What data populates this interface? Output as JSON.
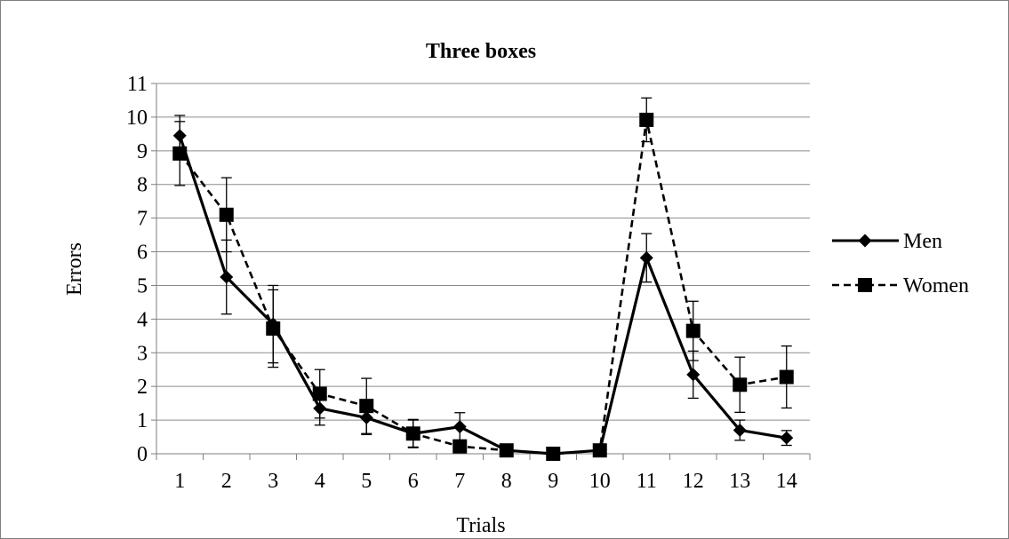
{
  "chart_data": {
    "type": "line",
    "title": "Three boxes",
    "xlabel": "Trials",
    "ylabel": "Errors",
    "x": [
      1,
      2,
      3,
      4,
      5,
      6,
      7,
      8,
      9,
      10,
      11,
      12,
      13,
      14
    ],
    "ylim": [
      0,
      11
    ],
    "yticks": [
      0,
      1,
      2,
      3,
      4,
      5,
      6,
      7,
      8,
      9,
      10,
      11
    ],
    "grid": "horizontal",
    "legend": "right",
    "series": [
      {
        "name": "Men",
        "marker": "diamond",
        "line": "solid",
        "color": "#000000",
        "values": [
          9.45,
          5.25,
          3.85,
          1.35,
          1.07,
          0.6,
          0.8,
          0.1,
          0.0,
          0.1,
          5.82,
          2.35,
          0.7,
          0.47
        ],
        "err": [
          0.6,
          1.1,
          1.15,
          0.5,
          0.5,
          0.42,
          0.42,
          0.1,
          0.0,
          0.1,
          0.72,
          0.7,
          0.3,
          0.22
        ]
      },
      {
        "name": "Women",
        "marker": "square",
        "line": "dashed",
        "color": "#000000",
        "values": [
          8.92,
          7.1,
          3.72,
          1.78,
          1.42,
          0.6,
          0.22,
          0.1,
          0.0,
          0.1,
          9.92,
          3.65,
          2.05,
          2.28
        ],
        "err": [
          0.95,
          1.1,
          1.15,
          0.72,
          0.82,
          0.4,
          0.12,
          0.1,
          0.0,
          0.1,
          0.65,
          0.88,
          0.82,
          0.92
        ]
      }
    ]
  }
}
